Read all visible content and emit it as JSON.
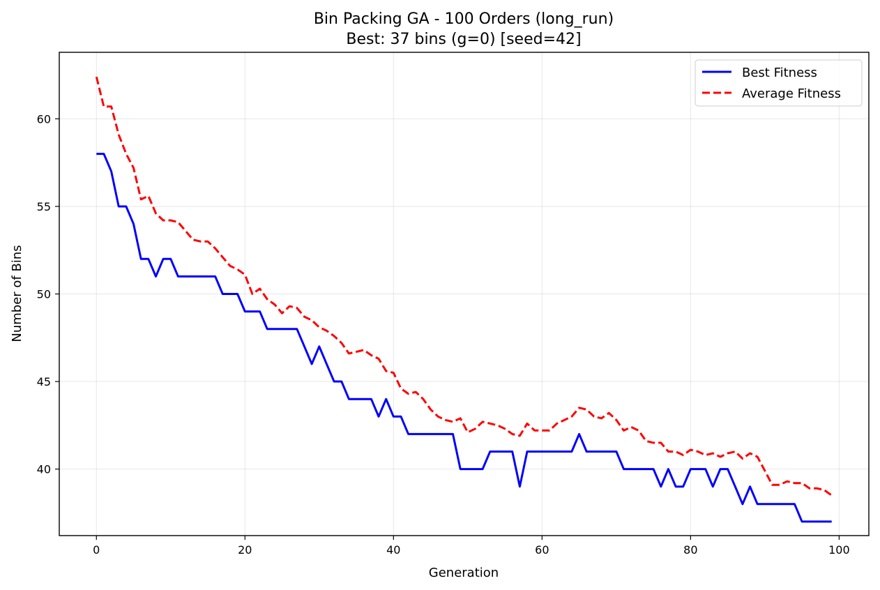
{
  "chart_data": {
    "type": "line",
    "title": "Bin Packing GA - 100 Orders (long_run)",
    "subtitle": "Best: 37 bins (g=0) [seed=42]",
    "xlabel": "Generation",
    "ylabel": "Number of Bins",
    "xlim": [
      -5,
      104
    ],
    "ylim": [
      36.2,
      63.8
    ],
    "xticks": [
      0,
      20,
      40,
      60,
      80,
      100
    ],
    "yticks": [
      40,
      45,
      50,
      55,
      60
    ],
    "grid": true,
    "legend_position": "top-right",
    "x": [
      0,
      1,
      2,
      3,
      4,
      5,
      6,
      7,
      8,
      9,
      10,
      11,
      12,
      13,
      14,
      15,
      16,
      17,
      18,
      19,
      20,
      21,
      22,
      23,
      24,
      25,
      26,
      27,
      28,
      29,
      30,
      31,
      32,
      33,
      34,
      35,
      36,
      37,
      38,
      39,
      40,
      41,
      42,
      43,
      44,
      45,
      46,
      47,
      48,
      49,
      50,
      51,
      52,
      53,
      54,
      55,
      56,
      57,
      58,
      59,
      60,
      61,
      62,
      63,
      64,
      65,
      66,
      67,
      68,
      69,
      70,
      71,
      72,
      73,
      74,
      75,
      76,
      77,
      78,
      79,
      80,
      81,
      82,
      83,
      84,
      85,
      86,
      87,
      88,
      89,
      90,
      91,
      92,
      93,
      94,
      95,
      96,
      97,
      98,
      99
    ],
    "series": [
      {
        "name": "Best Fitness",
        "color": "#0000ff",
        "style": "solid",
        "values": [
          58,
          58,
          57,
          55,
          55,
          54,
          52,
          52,
          51,
          52,
          52,
          51,
          51,
          51,
          51,
          51,
          51,
          50,
          50,
          50,
          49,
          49,
          49,
          48,
          48,
          48,
          48,
          48,
          47,
          46,
          47,
          46,
          45,
          45,
          44,
          44,
          44,
          44,
          43,
          44,
          43,
          43,
          42,
          42,
          42,
          42,
          42,
          42,
          42,
          40,
          40,
          40,
          40,
          41,
          41,
          41,
          41,
          39,
          41,
          41,
          41,
          41,
          41,
          41,
          41,
          42,
          41,
          41,
          41,
          41,
          41,
          40,
          40,
          40,
          40,
          40,
          39,
          40,
          39,
          39,
          40,
          40,
          40,
          39,
          40,
          40,
          39,
          38,
          39,
          38,
          38,
          38,
          38,
          38,
          38,
          37,
          37,
          37,
          37,
          37
        ]
      },
      {
        "name": "Average Fitness",
        "color": "#ff0000",
        "style": "dashed",
        "values": [
          62.4,
          60.7,
          60.7,
          59.1,
          58.0,
          57.2,
          55.4,
          55.6,
          54.6,
          54.2,
          54.2,
          54.1,
          53.6,
          53.1,
          53.0,
          53.0,
          52.6,
          52.1,
          51.6,
          51.4,
          51.1,
          50.0,
          50.3,
          49.7,
          49.4,
          48.9,
          49.3,
          49.2,
          48.7,
          48.5,
          48.1,
          47.9,
          47.6,
          47.2,
          46.6,
          46.7,
          46.8,
          46.5,
          46.3,
          45.6,
          45.5,
          44.6,
          44.3,
          44.4,
          44.0,
          43.4,
          43.0,
          42.8,
          42.7,
          42.9,
          42.1,
          42.3,
          42.7,
          42.6,
          42.5,
          42.3,
          42.0,
          41.9,
          42.6,
          42.2,
          42.2,
          42.2,
          42.6,
          42.8,
          43.0,
          43.5,
          43.4,
          43.0,
          42.9,
          43.2,
          42.8,
          42.2,
          42.4,
          42.2,
          41.6,
          41.5,
          41.5,
          41.0,
          41.0,
          40.8,
          41.1,
          41.0,
          40.8,
          40.9,
          40.7,
          40.9,
          41.0,
          40.6,
          40.9,
          40.7,
          39.9,
          39.1,
          39.1,
          39.3,
          39.2,
          39.2,
          38.9,
          38.9,
          38.8,
          38.5
        ]
      }
    ]
  }
}
